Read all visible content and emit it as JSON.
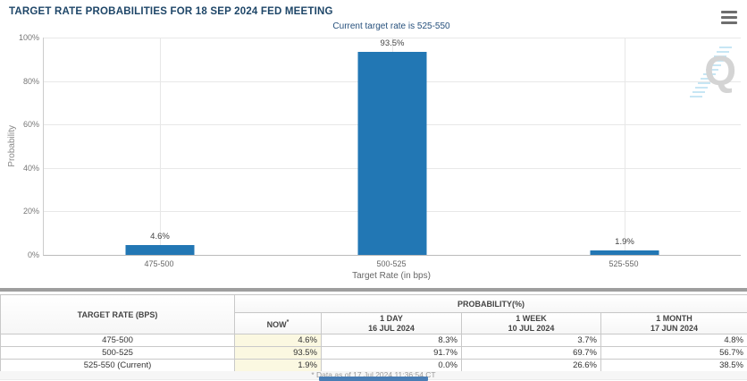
{
  "header": {
    "title": "TARGET RATE PROBABILITIES FOR 18 SEP 2024 FED MEETING",
    "subtitle": "Current target rate is 525-550"
  },
  "chart_data": {
    "type": "bar",
    "title": "Current target rate is 525-550",
    "categories": [
      "475-500",
      "500-525",
      "525-550"
    ],
    "values": [
      4.6,
      93.5,
      1.9
    ],
    "value_labels": [
      "4.6%",
      "93.5%",
      "1.9%"
    ],
    "xlabel": "Target Rate (in bps)",
    "ylabel": "Probability",
    "ylim": [
      0,
      100
    ],
    "yticks": [
      0,
      20,
      40,
      60,
      80,
      100
    ],
    "ytick_labels": [
      "0%",
      "20%",
      "40%",
      "60%",
      "80%",
      "100%"
    ],
    "grid": true,
    "legend": "none",
    "bar_color": "#2277b4",
    "watermark_letter": "Q"
  },
  "table": {
    "corner_header": "TARGET RATE (BPS)",
    "group_header": "PROBABILITY(%)",
    "sub_headers": [
      {
        "line1": "NOW",
        "sup": "*",
        "line2": ""
      },
      {
        "line1": "1 DAY",
        "sup": "",
        "line2": "16 JUL 2024"
      },
      {
        "line1": "1 WEEK",
        "sup": "",
        "line2": "10 JUL 2024"
      },
      {
        "line1": "1 MONTH",
        "sup": "",
        "line2": "17 JUN 2024"
      }
    ],
    "rows": [
      {
        "rate": "475-500",
        "now": "4.6%",
        "day": "8.3%",
        "week": "3.7%",
        "month": "4.8%"
      },
      {
        "rate": "500-525",
        "now": "93.5%",
        "day": "91.7%",
        "week": "69.7%",
        "month": "56.7%"
      },
      {
        "rate": "525-550 (Current)",
        "now": "1.9%",
        "day": "0.0%",
        "week": "26.6%",
        "month": "38.5%"
      }
    ],
    "footnote": "* Data as of 17 Jul 2024 11:36:54 CT"
  },
  "colors": {
    "title_text": "#1e4668",
    "bar": "#2277b4",
    "now_column_highlight": "#fbf8e1",
    "scroll_thumb": "#4a7eb5"
  }
}
